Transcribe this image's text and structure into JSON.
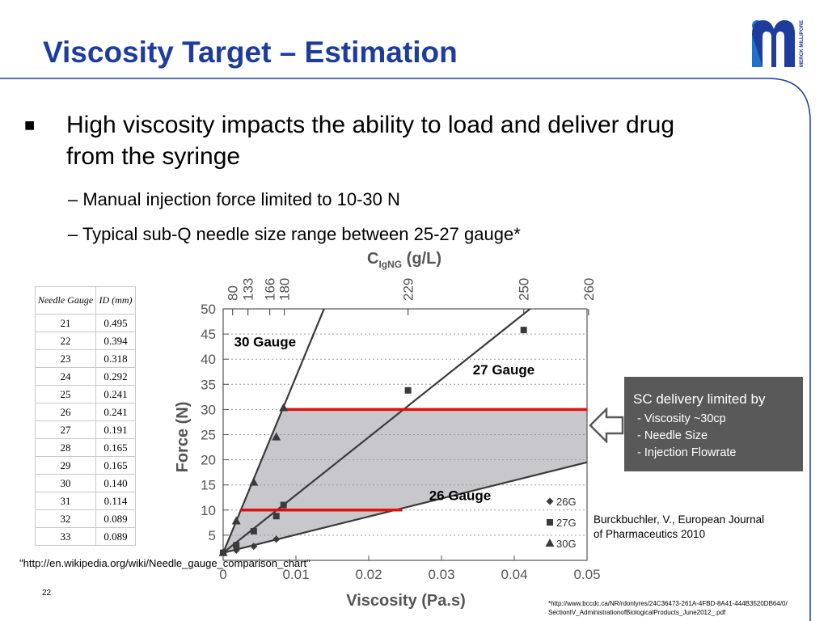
{
  "slide": {
    "title": "Viscosity Target – Estimation",
    "page_number": "22",
    "brand_color": "#1e3c9c"
  },
  "logo": {
    "letter": "M",
    "vertical_text": "MERCK MILLIPORE",
    "icon": "merck-millipore-logo"
  },
  "bullets": {
    "marker": "■",
    "main": "High viscosity impacts the ability to load and deliver drug from the syringe",
    "sub": [
      "– Manual injection force limited to 10-30 N",
      "– Typical sub-Q needle size range between 25-27 gauge*"
    ]
  },
  "gauge_table": {
    "headers": [
      "Needle Gauge",
      "ID (mm)"
    ],
    "rows": [
      [
        "21",
        "0.495"
      ],
      [
        "22",
        "0.394"
      ],
      [
        "23",
        "0.318"
      ],
      [
        "24",
        "0.292"
      ],
      [
        "25",
        "0.241"
      ],
      [
        "26",
        "0.241"
      ],
      [
        "27",
        "0.191"
      ],
      [
        "28",
        "0.165"
      ],
      [
        "29",
        "0.165"
      ],
      [
        "30",
        "0.140"
      ],
      [
        "31",
        "0.114"
      ],
      [
        "32",
        "0.089"
      ],
      [
        "33",
        "0.089"
      ]
    ],
    "source": "\"http://en.wikipedia.org/wiki/Needle_gauge_comparison_chart\""
  },
  "callout": {
    "title": "SC delivery limited by",
    "items": [
      "- Viscosity ~30cp",
      "-  Needle Size",
      "- Injection Flowrate"
    ],
    "arrow_icon": "left-arrow-icon",
    "bg_color": "#595959"
  },
  "citation": {
    "line1": "Burckbuchler, V., European Journal",
    "line2": "of Pharmaceutics 2010"
  },
  "footnote": {
    "line1": "*http://www.bccdc.ca/NR/rdonlyres/24C36473-261A-4FBD-8A41-444B3520DB64/0/",
    "line2": "SectionIV_AdministrationofBiologicalProducts_June2012_.pdf"
  },
  "chart_data": {
    "type": "scatter",
    "xlabel": "Viscosity (Pa.s)",
    "ylabel": "Force (N)",
    "top_axis_label": "C",
    "top_axis_label_sub": "IgNG",
    "top_axis_label_unit": " (g/L)",
    "xlim": [
      0,
      0.05
    ],
    "ylim": [
      0,
      50
    ],
    "x_ticks": [
      0,
      0.01,
      0.02,
      0.03,
      0.04,
      0.05
    ],
    "x_tick_labels": [
      "0",
      "0.01",
      "0.02",
      "0.03",
      "0.04",
      "0.05"
    ],
    "y_ticks": [
      5,
      10,
      15,
      20,
      25,
      30,
      35,
      40,
      45,
      50
    ],
    "y_tick_labels": [
      "5",
      "10",
      "15",
      "20",
      "25",
      "30",
      "35",
      "40",
      "45",
      "50"
    ],
    "top_ticks": [
      0.0013,
      0.0034,
      0.0064,
      0.0084,
      0.0254,
      0.0413,
      0.0502
    ],
    "top_tick_labels": [
      "80",
      "133",
      "166",
      "180",
      "229",
      "250",
      "260"
    ],
    "grid": "dashed horizontal",
    "legend_position": "bottom-right",
    "series": [
      {
        "name": "26G",
        "marker": "diamond",
        "x": [
          0,
          0.0018,
          0.0042,
          0.0073
        ],
        "y": [
          1.5,
          2.0,
          2.8,
          4.2
        ],
        "fit": {
          "slope": 360,
          "intercept": 1.5
        }
      },
      {
        "name": "27G",
        "marker": "square",
        "x": [
          0,
          0.0018,
          0.0042,
          0.0073,
          0.0083,
          0.0254,
          0.0413
        ],
        "y": [
          1.5,
          3.0,
          5.8,
          8.8,
          11.0,
          33.8,
          45.8
        ],
        "fit": {
          "slope": 1150,
          "intercept": 1.5
        }
      },
      {
        "name": "30G",
        "marker": "triangle",
        "x": [
          0,
          0.0018,
          0.0042,
          0.0073,
          0.0083
        ],
        "y": [
          1.5,
          7.8,
          15.5,
          24.5,
          30.3
        ],
        "fit": {
          "slope": 3500,
          "intercept": 1.5
        }
      }
    ],
    "line_labels": [
      {
        "text": "30 Gauge",
        "x": 0.0015,
        "y": 42.5
      },
      {
        "text": "27 Gauge",
        "x": 0.0343,
        "y": 37.0
      },
      {
        "text": "26 Gauge",
        "x": 0.0283,
        "y": 12.0
      }
    ],
    "limit_lines": [
      {
        "y": 30,
        "x_start": 0.0083,
        "x_end": 0.05
      },
      {
        "y": 10,
        "x_start": 0.0024,
        "x_end": 0.0246
      }
    ],
    "shaded_region": {
      "y_min": 10,
      "y_max": 30
    },
    "colors": {
      "fit_line": "#3a3a3a",
      "limit_line": "#e01010",
      "shade": "#c8c8cc",
      "marker": "#3a3a3a"
    }
  }
}
